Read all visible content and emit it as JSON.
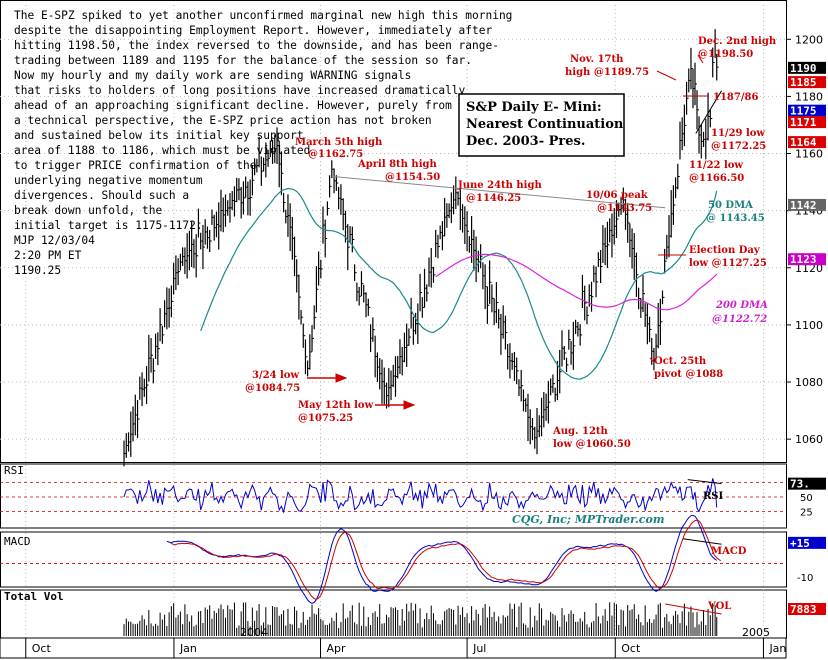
{
  "commentary": [
    "The E-SPZ spiked to yet another unconfirmed marginal new high this morning",
    "despite the disappointing Employment Report. However, immediately after",
    "hitting 1198.50, the index reversed to the downside, and has been range-",
    "trading between 1189 and 1195 for the balance of the session so far.",
    "Now my hourly and my daily work are sending WARNING signals",
    "that risks to holders of long positions have increased dramatically",
    "ahead of an approaching significant decline. However, purely from",
    "a technical perspective, the E-SPZ price action has not broken",
    "and sustained below its initial key support",
    "area of 1188 to 1186, which must be violated",
    "to trigger PRICE confirmation of the",
    "underlying negative momentum",
    "divergences. Should such a",
    "break down unfold, the",
    "initial target is 1175-1172.",
    "MJP  12/03/04",
    "2:20 PM ET",
    "1190.25"
  ],
  "title_box": [
    "S&P Daily E- Mini:",
    "Nearest Continuation",
    "Dec. 2003- Pres."
  ],
  "credit": "CQG, Inc; MPTrader.com",
  "panels": {
    "rsi_label": "RSI",
    "macd_label": "MACD",
    "vol_label": "Total Vol",
    "rsi_inline": "RSI",
    "macd_inline": "MACD",
    "vol_inline": "VOL"
  },
  "price_axis_ticks": [
    "1200",
    "1180",
    "1160",
    "1140",
    "1120",
    "1100",
    "1080",
    "1060"
  ],
  "rsi_axis_ticks": [
    "50",
    "25"
  ],
  "macd_axis_ticks": [
    "-10"
  ],
  "right_badges": {
    "price": [
      {
        "text": "1190",
        "bg": "#000000",
        "fg": "#ffffff",
        "value": 1190
      },
      {
        "text": "1185",
        "bg": "#dd0000",
        "fg": "#ffffff",
        "value": 1185
      },
      {
        "text": "1175",
        "bg": "#0000cc",
        "fg": "#ffffff",
        "value": 1175
      },
      {
        "text": "1171",
        "bg": "#dd0000",
        "fg": "#ffffff",
        "value": 1171
      },
      {
        "text": "1164",
        "bg": "#dd0000",
        "fg": "#ffffff",
        "value": 1164
      },
      {
        "text": "1142",
        "bg": "#666666",
        "fg": "#ffffff",
        "value": 1142
      },
      {
        "text": "1123",
        "bg": "#cc00cc",
        "fg": "#ffffff",
        "value": 1123
      }
    ],
    "rsi": {
      "text": "73.",
      "bg": "#000000",
      "fg": "#ffffff"
    },
    "macd": {
      "text": "+15",
      "bg": "#0000cc",
      "fg": "#ffffff"
    },
    "vol": {
      "text": "7883",
      "bg": "#dd0000",
      "fg": "#ffffff"
    }
  },
  "time_axis": [
    "Oct",
    "Jan",
    "Apr",
    "Jul",
    "Oct",
    "Jan"
  ],
  "year_labels": [
    "2004",
    "2005"
  ],
  "annotations": {
    "march5": [
      "March 5th high",
      "@1162.75"
    ],
    "april8": [
      "April 8th high",
      "@1154.50"
    ],
    "june24": [
      "June 24th high",
      "@1146.25"
    ],
    "oct06": [
      "10/06 peak",
      "@1143.75"
    ],
    "nov17": [
      "Nov. 17th",
      "high @1189.75"
    ],
    "dec2": [
      "Dec. 2nd high",
      "@1198.50"
    ],
    "level1187": "1187/86",
    "nov29": [
      "11/29 low",
      "@1172.25"
    ],
    "nov22": [
      "11/22 low",
      "@1166.50"
    ],
    "dma50": [
      "50 DMA",
      "@ 1143.45"
    ],
    "election": [
      "Election Day",
      "low @1127.25"
    ],
    "dma200": [
      "200 DMA",
      "@1122.72"
    ],
    "mar24": [
      "3/24 low",
      "@1084.75"
    ],
    "may12": [
      "May 12th low",
      "@1075.25"
    ],
    "oct25": [
      "Oct. 25th",
      "pivot @1088"
    ],
    "aug12": [
      "Aug. 12th",
      "low @1060.50"
    ]
  },
  "chart_data": {
    "type": "ohlc",
    "title": "S&P Daily E- Mini: Nearest Continuation Dec. 2003- Pres.",
    "ylim": [
      1052,
      1212
    ],
    "grid": true,
    "price_anchors": [
      {
        "date": "2003-12-01",
        "value": 1055
      },
      {
        "date": "2004-01-05",
        "value": 1122
      },
      {
        "date": "2004-02-02",
        "value": 1140
      },
      {
        "date": "2004-03-05",
        "value": 1162.75
      },
      {
        "date": "2004-03-24",
        "value": 1084.75
      },
      {
        "date": "2004-04-08",
        "value": 1154.5
      },
      {
        "date": "2004-05-12",
        "value": 1075.25
      },
      {
        "date": "2004-06-24",
        "value": 1146.25
      },
      {
        "date": "2004-08-12",
        "value": 1060.5
      },
      {
        "date": "2004-10-06",
        "value": 1143.75
      },
      {
        "date": "2004-10-25",
        "value": 1088
      },
      {
        "date": "2004-11-02",
        "value": 1127.25
      },
      {
        "date": "2004-11-17",
        "value": 1189.75
      },
      {
        "date": "2004-11-22",
        "value": 1166.5
      },
      {
        "date": "2004-11-29",
        "value": 1172.25
      },
      {
        "date": "2004-12-02",
        "value": 1198.5
      },
      {
        "date": "2004-12-03",
        "value": 1190.25
      }
    ],
    "series": [
      {
        "name": "50 DMA",
        "last_value": 1143.45
      },
      {
        "name": "200 DMA",
        "last_value": 1122.72
      }
    ],
    "indicators": {
      "rsi_last": 73,
      "rsi_levels": [
        75,
        50,
        25
      ],
      "macd_last": 15,
      "volume_last": 7883
    }
  }
}
